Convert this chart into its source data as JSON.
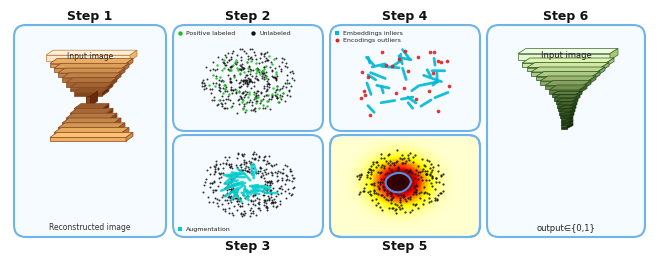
{
  "bg_color": "#ffffff",
  "panel_bg": "#f5fbff",
  "panel_border": "#6eb4e8",
  "step_labels": [
    "Step 1",
    "Step 2",
    "Step 3",
    "Step 4",
    "Step 5",
    "Step 6"
  ],
  "autoencoder_top_label": "Input image",
  "autoencoder_bot_label": "Reconstructed image",
  "classifier_top_label": "Input image",
  "classifier_bot_label": "output∈{0,1}",
  "legend_step2_labels": [
    "Positive labeled",
    "Unlabeled"
  ],
  "legend_step4_labels": [
    "Embeddings inliers",
    "Encodings outliers"
  ],
  "legend_step3": "Augmentation",
  "enc_colors": [
    "#fce0b8",
    "#f0c090",
    "#e0a870",
    "#d09060",
    "#c07848",
    "#b06838",
    "#a05828",
    "#8a4818",
    "#784010"
  ],
  "dec_colors": [
    "#784010",
    "#8a4818",
    "#a05828",
    "#b06838",
    "#c07848",
    "#d09060",
    "#e0a870",
    "#f0c090",
    "#fce0b8"
  ],
  "green_colors": [
    "#e8f5d8",
    "#d0eab0",
    "#b8dc90",
    "#a0cc70",
    "#88bc50",
    "#70aa30",
    "#589a18",
    "#408808",
    "#286800"
  ],
  "green_edge": "#3a6820"
}
